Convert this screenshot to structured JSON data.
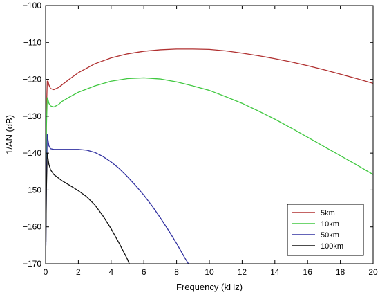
{
  "chart_data": {
    "type": "line",
    "title": "",
    "xlabel": "Frequency (kHz)",
    "ylabel": "1/AN (dB)",
    "xlim": [
      0,
      20
    ],
    "ylim": [
      -170,
      -100
    ],
    "xticks": [
      "0",
      "2",
      "4",
      "6",
      "8",
      "10",
      "12",
      "14",
      "16",
      "18",
      "20"
    ],
    "yticks": [
      "−100",
      "−110",
      "−120",
      "−130",
      "−140",
      "−150",
      "−160",
      "−170"
    ],
    "grid": false,
    "legend_position": "bottom-right",
    "series": [
      {
        "name": "5km",
        "color": "#b03030",
        "x": [
          0.02,
          0.05,
          0.1,
          0.15,
          0.2,
          0.3,
          0.5,
          0.8,
          1,
          1.5,
          2,
          3,
          4,
          5,
          6,
          7,
          8,
          9,
          10,
          11,
          12,
          13,
          14,
          15,
          16,
          17,
          18,
          19,
          20
        ],
        "y": [
          -150,
          -129,
          -120.5,
          -120.5,
          -121.5,
          -122.5,
          -122.8,
          -122.2,
          -121.5,
          -119.8,
          -118.2,
          -115.8,
          -114.2,
          -113.1,
          -112.4,
          -112.0,
          -111.8,
          -111.8,
          -111.9,
          -112.3,
          -112.9,
          -113.6,
          -114.4,
          -115.3,
          -116.3,
          -117.4,
          -118.6,
          -119.8,
          -121.1
        ]
      },
      {
        "name": "10km",
        "color": "#40c840",
        "x": [
          0.02,
          0.05,
          0.1,
          0.15,
          0.2,
          0.3,
          0.5,
          0.8,
          1,
          1.5,
          2,
          3,
          4,
          5,
          6,
          7,
          8,
          9,
          10,
          11,
          12,
          13,
          14,
          15,
          16,
          17,
          18,
          19,
          20
        ],
        "y": [
          -160,
          -133,
          -125,
          -125.5,
          -126.5,
          -127.2,
          -127.5,
          -126.8,
          -126,
          -124.7,
          -123.5,
          -121.8,
          -120.5,
          -119.8,
          -119.6,
          -119.9,
          -120.7,
          -121.8,
          -123,
          -124.7,
          -126.5,
          -128.6,
          -130.8,
          -133.2,
          -135.7,
          -138.2,
          -140.7,
          -143.2,
          -145.8
        ]
      },
      {
        "name": "50km",
        "color": "#3030a0",
        "x": [
          0.02,
          0.05,
          0.1,
          0.15,
          0.2,
          0.3,
          0.5,
          0.8,
          1,
          1.5,
          2,
          2.5,
          3,
          3.5,
          4,
          4.5,
          5,
          5.5,
          6,
          6.5,
          7,
          7.5,
          8,
          8.5,
          9
        ],
        "y": [
          -165,
          -148,
          -135,
          -136.5,
          -138,
          -138.8,
          -139,
          -139,
          -139,
          -139,
          -139,
          -139.2,
          -139.8,
          -140.9,
          -142.4,
          -144.2,
          -146.4,
          -148.8,
          -151.4,
          -154.3,
          -157.5,
          -160.9,
          -164.5,
          -168.4,
          -172
        ]
      },
      {
        "name": "100km",
        "color": "#101010",
        "x": [
          0.02,
          0.05,
          0.1,
          0.15,
          0.2,
          0.3,
          0.5,
          0.8,
          1,
          1.5,
          2,
          2.5,
          3,
          3.5,
          4,
          4.5,
          5,
          5.2
        ],
        "y": [
          -164,
          -150,
          -140,
          -141.5,
          -143,
          -144.5,
          -145.8,
          -146.8,
          -147.5,
          -148.8,
          -150.2,
          -151.8,
          -154,
          -157,
          -160.5,
          -164.5,
          -168.8,
          -171
        ]
      }
    ]
  }
}
